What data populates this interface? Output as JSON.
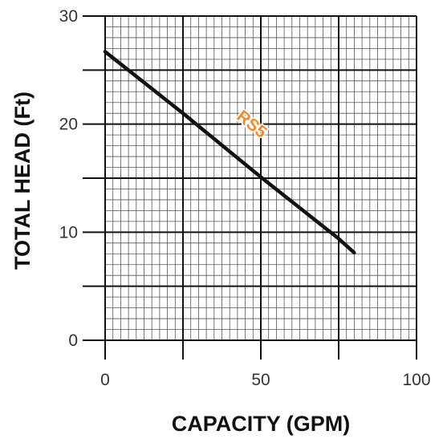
{
  "chart_data": {
    "type": "line",
    "title": "",
    "xlabel": "CAPACITY (GPM)",
    "ylabel": "TOTAL HEAD (Ft)",
    "xlim": [
      0,
      100
    ],
    "ylim": [
      0,
      30
    ],
    "x_ticks": [
      0,
      50,
      100
    ],
    "y_ticks": [
      0,
      10,
      20,
      30
    ],
    "grid": true,
    "minor_grid_x_step": 2.5,
    "minor_grid_y_step": 1,
    "major_grid_x_step": 25,
    "major_grid_y_step": 5,
    "series": [
      {
        "name": "RS5",
        "color": "#111111",
        "label_color": "#f08a2c",
        "points": [
          [
            0,
            26.7
          ],
          [
            25,
            21.0
          ],
          [
            50,
            15.1
          ],
          [
            75,
            9.4
          ],
          [
            80,
            8.1
          ]
        ]
      }
    ]
  }
}
